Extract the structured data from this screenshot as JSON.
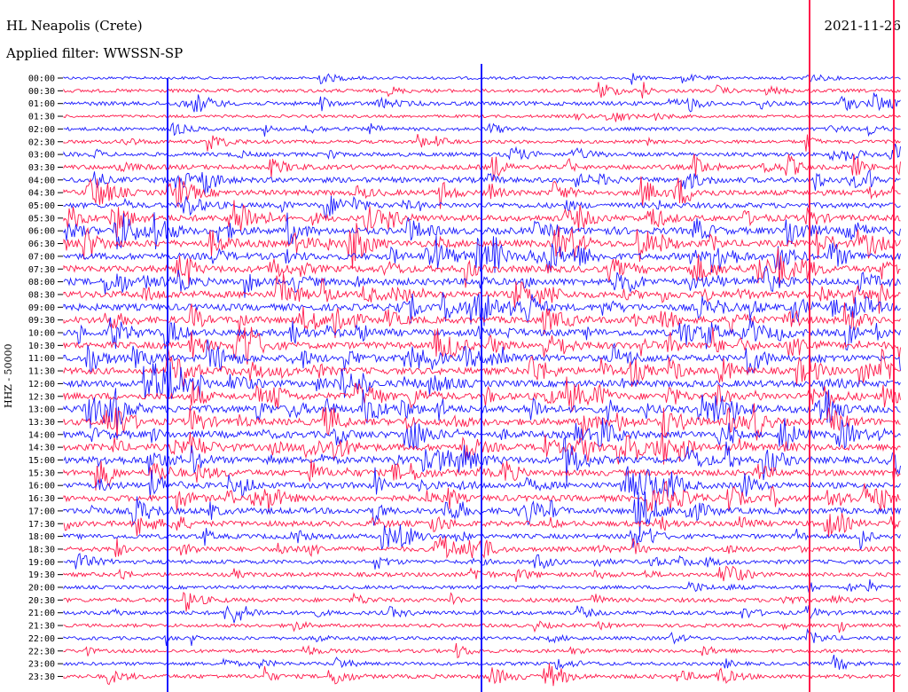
{
  "header": {
    "station": "HL Neapolis (Crete)",
    "filter": "Applied filter: WWSSN-SP",
    "date": "2021-11-26",
    "channel": "HHZ - 50000"
  },
  "colors": {
    "trace_a": "#1a1aff",
    "trace_b": "#ff1a4b",
    "axis": "#000000"
  },
  "chart_data": {
    "type": "line",
    "title": "HL Neapolis (Crete)",
    "subtitle": "Applied filter: WWSSN-SP",
    "ylabel": "HHZ - 50000",
    "xlabel": "",
    "categories": [
      "00:00",
      "00:30",
      "01:00",
      "01:30",
      "02:00",
      "02:30",
      "03:00",
      "03:30",
      "04:00",
      "04:30",
      "05:00",
      "05:30",
      "06:00",
      "06:30",
      "07:00",
      "07:30",
      "08:00",
      "08:30",
      "09:00",
      "09:30",
      "10:00",
      "10:30",
      "11:00",
      "11:30",
      "12:00",
      "12:30",
      "13:00",
      "13:30",
      "14:00",
      "14:30",
      "15:00",
      "15:30",
      "16:00",
      "16:30",
      "17:00",
      "17:30",
      "18:00",
      "18:30",
      "19:00",
      "19:30",
      "20:00",
      "20:30",
      "21:00",
      "21:30",
      "22:00",
      "22:30",
      "23:00",
      "23:30"
    ],
    "series": [
      {
        "name": "blue traces",
        "rows": "even (00:00, 01:00, ...)",
        "color": "#1a1aff"
      },
      {
        "name": "red traces",
        "rows": "odd (00:30, 01:30, ...)",
        "color": "#ff1a4b"
      }
    ],
    "activity_by_row": [
      1,
      2,
      3,
      1,
      2,
      2,
      3,
      4,
      5,
      5,
      5,
      6,
      7,
      7,
      7,
      7,
      7,
      7,
      7,
      7,
      7,
      7,
      7,
      7,
      7,
      7,
      8,
      7,
      7,
      7,
      7,
      6,
      6,
      6,
      6,
      5,
      4,
      4,
      3,
      3,
      2,
      3,
      3,
      2,
      2,
      2,
      2,
      3
    ]
  }
}
